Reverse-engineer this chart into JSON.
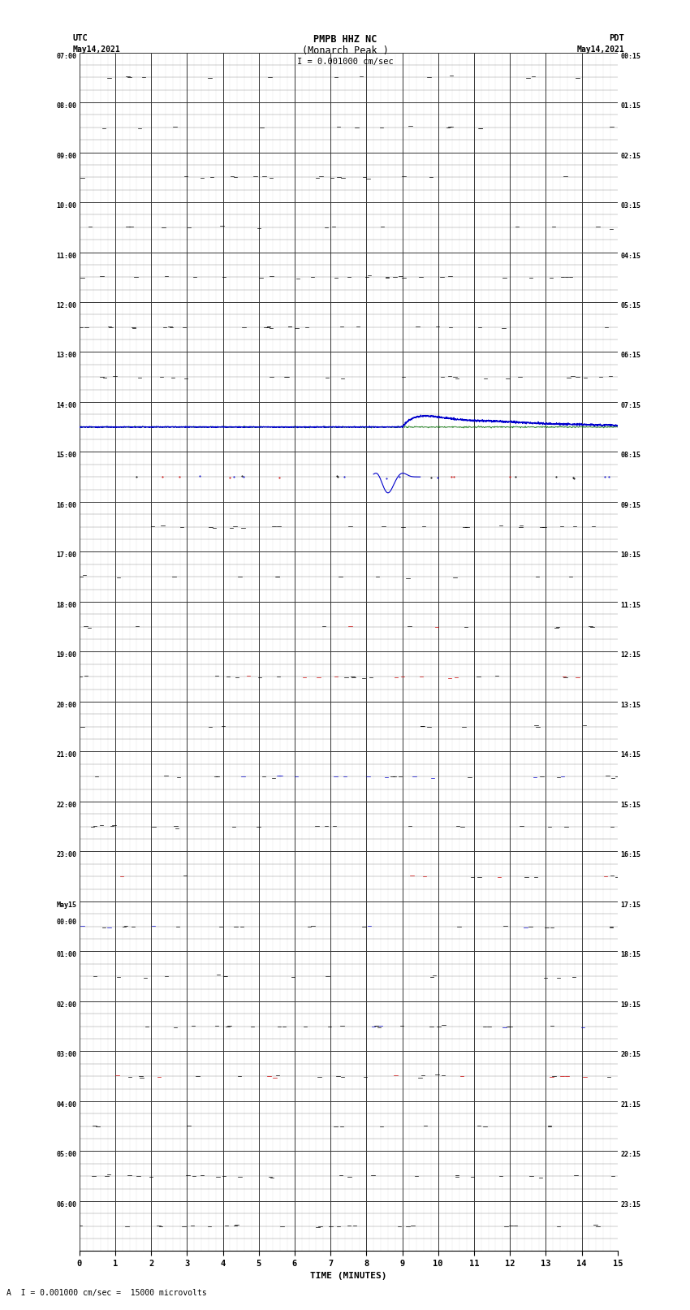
{
  "title_line1": "PMPB HHZ NC",
  "title_line2": "(Monarch Peak )",
  "scale_label": "I = 0.001000 cm/sec",
  "bottom_label": "A  I = 0.001000 cm/sec =  15000 microvolts",
  "xlabel": "TIME (MINUTES)",
  "left_labels": [
    "07:00",
    "08:00",
    "09:00",
    "10:00",
    "11:00",
    "12:00",
    "13:00",
    "14:00",
    "15:00",
    "16:00",
    "17:00",
    "18:00",
    "19:00",
    "20:00",
    "21:00",
    "22:00",
    "23:00",
    "May15\n00:00",
    "01:00",
    "02:00",
    "03:00",
    "04:00",
    "05:00",
    "06:00"
  ],
  "right_labels": [
    "00:15",
    "01:15",
    "02:15",
    "03:15",
    "04:15",
    "05:15",
    "06:15",
    "07:15",
    "08:15",
    "09:15",
    "10:15",
    "11:15",
    "12:15",
    "13:15",
    "14:15",
    "15:15",
    "16:15",
    "17:15",
    "18:15",
    "19:15",
    "20:15",
    "21:15",
    "22:15",
    "23:15"
  ],
  "bg_color": "#ffffff",
  "n_rows": 24,
  "event_row": 7,
  "green_row": 7
}
